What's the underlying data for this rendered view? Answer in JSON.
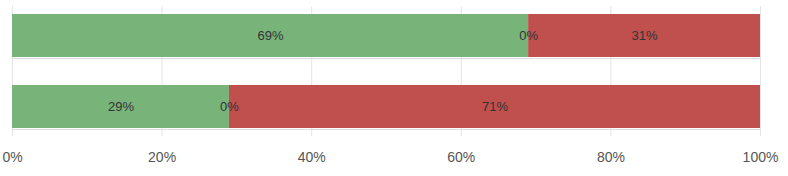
{
  "chart_data": {
    "type": "bar",
    "orientation": "horizontal",
    "stacked": true,
    "data_labels": true,
    "grid": true,
    "tick_labels": "x",
    "categories": [
      null,
      null
    ],
    "series": [
      {
        "color": "#78b37a",
        "values": [
          69,
          29
        ],
        "value_labels": [
          "69%",
          "29%"
        ]
      },
      {
        "color": "#a5a5a5",
        "values": [
          0,
          0
        ],
        "value_labels": [
          "0%",
          "0%"
        ]
      },
      {
        "color": "#c0504d",
        "values": [
          31,
          71
        ],
        "value_labels": [
          "31%",
          "71%"
        ]
      }
    ],
    "xlim": [
      0,
      100
    ],
    "xticks": [
      {
        "value": 0,
        "label": "0%"
      },
      {
        "value": 20,
        "label": "20%"
      },
      {
        "value": 40,
        "label": "40%"
      },
      {
        "value": 60,
        "label": "60%"
      },
      {
        "value": 80,
        "label": "80%"
      },
      {
        "value": 100,
        "label": "100%"
      }
    ]
  }
}
